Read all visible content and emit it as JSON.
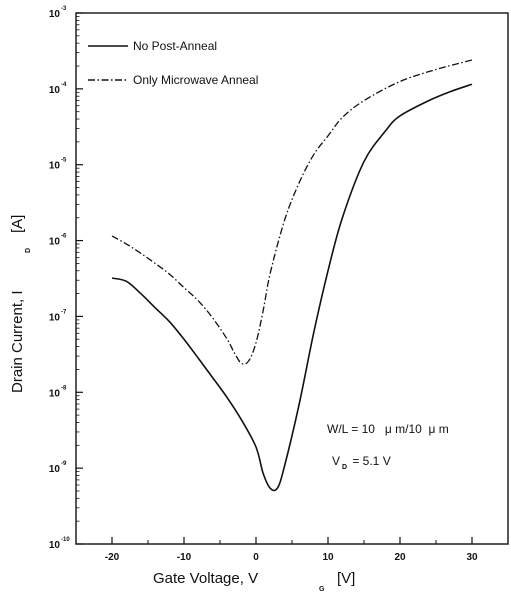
{
  "chart_data": {
    "type": "line",
    "xlabel": {
      "main": "Gate Voltage, V",
      "sub": "G",
      "unit": "[V]"
    },
    "ylabel": {
      "main": "Drain Current, I",
      "sub": "D",
      "unit": "[A]"
    },
    "xlim": [
      -25,
      35
    ],
    "ylim_log10": [
      -10,
      -3
    ],
    "y_scale": "log",
    "x_ticks": [
      {
        "value": -20,
        "label": "-20"
      },
      {
        "value": -10,
        "label": "-10"
      },
      {
        "value": 0,
        "label": "0"
      },
      {
        "value": 10,
        "label": "10"
      },
      {
        "value": 20,
        "label": "20"
      },
      {
        "value": 30,
        "label": "30"
      }
    ],
    "y_ticks": [
      {
        "exp": -3,
        "base": "10",
        "sup": "-3"
      },
      {
        "exp": -4,
        "base": "10",
        "sup": "-4"
      },
      {
        "exp": -5,
        "base": "10",
        "sup": "-5"
      },
      {
        "exp": -6,
        "base": "10",
        "sup": "-6"
      },
      {
        "exp": -7,
        "base": "10",
        "sup": "-7"
      },
      {
        "exp": -8,
        "base": "10",
        "sup": "-8"
      },
      {
        "exp": -9,
        "base": "10",
        "sup": "-9"
      },
      {
        "exp": -10,
        "base": "10",
        "sup": "-10"
      }
    ],
    "legend_position": "top-left",
    "grid": false,
    "series": [
      {
        "name": "No Post-Anneal",
        "style": "solid",
        "color": "#111111",
        "x": [
          -20,
          -18,
          -16,
          -14,
          -12,
          -10,
          -8,
          -6,
          -4,
          -2,
          0,
          1,
          2,
          3,
          4,
          6,
          8,
          10,
          12,
          15,
          18,
          20,
          24,
          27,
          30
        ],
        "y": [
          3.2e-07,
          2.9e-07,
          2e-07,
          1.3e-07,
          8.5e-08,
          5e-08,
          2.8e-08,
          1.55e-08,
          8.5e-09,
          4.3e-09,
          1.9e-09,
          8.5e-10,
          5.4e-10,
          5.5e-10,
          1.1e-09,
          7e-09,
          6e-08,
          4e-07,
          2e-06,
          1.1e-05,
          2.8e-05,
          4.4e-05,
          7e-05,
          9.2e-05,
          0.000115
        ]
      },
      {
        "name": "Only Microwave Anneal",
        "style": "dash-dot",
        "color": "#111111",
        "x": [
          -20,
          -18,
          -16,
          -14,
          -12,
          -10,
          -8,
          -6,
          -4,
          -3,
          -2,
          -1,
          0,
          1,
          2,
          4,
          6,
          8,
          10,
          12,
          15,
          20,
          25,
          30
        ],
        "y": [
          1.15e-06,
          9e-07,
          6.8e-07,
          5e-07,
          3.6e-07,
          2.4e-07,
          1.6e-07,
          9.5e-08,
          5e-08,
          3.3e-08,
          2.4e-08,
          2.6e-08,
          4.5e-08,
          1.2e-07,
          3.8e-07,
          1.9e-06,
          5.8e-06,
          1.35e-05,
          2.4e-05,
          4.2e-05,
          7e-05,
          0.000125,
          0.00018,
          0.00024
        ]
      }
    ],
    "annotations": [
      {
        "id": "wl",
        "text": "W/L = 10   μ m/10  μ m"
      },
      {
        "id": "vd",
        "main": "V",
        "sub": "D",
        "value": " = 5.1 V"
      }
    ]
  }
}
